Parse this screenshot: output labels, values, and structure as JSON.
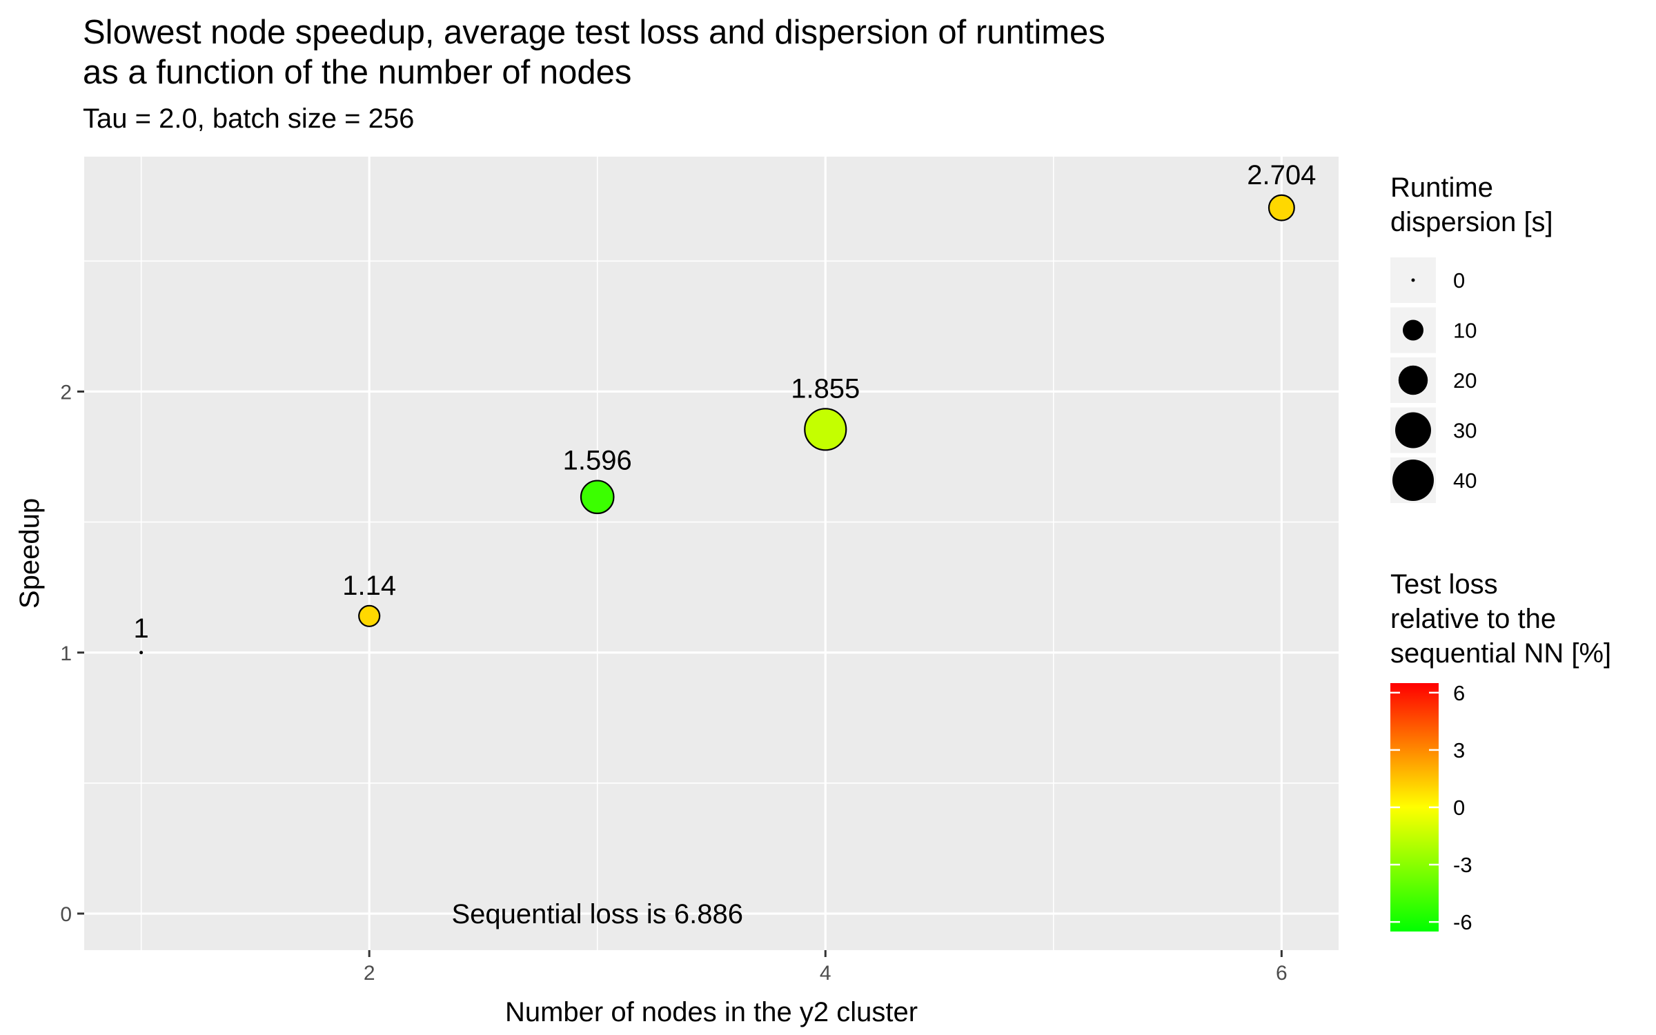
{
  "chart_data": {
    "type": "scatter",
    "title_lines": [
      "Slowest node speedup, average test loss and dispersion of runtimes",
      "as a function of the number of nodes"
    ],
    "subtitle": "Tau = 2.0, batch size = 256",
    "xlabel": "Number of nodes in the y2 cluster",
    "ylabel": "Speedup",
    "xlim": [
      0.75,
      6.25
    ],
    "ylim": [
      -0.14,
      2.9
    ],
    "x_ticks": [
      2,
      4,
      6
    ],
    "y_ticks": [
      0,
      1,
      2
    ],
    "grid": true,
    "points": [
      {
        "x": 1,
        "y": 1.0,
        "label": "1",
        "dispersion": 0,
        "loss_pct": 1.0
      },
      {
        "x": 2,
        "y": 1.14,
        "label": "1.14",
        "dispersion": 10,
        "loss_pct": 1.0
      },
      {
        "x": 3,
        "y": 1.596,
        "label": "1.596",
        "dispersion": 25,
        "loss_pct": -5.0
      },
      {
        "x": 4,
        "y": 1.855,
        "label": "1.855",
        "dispersion": 40,
        "loss_pct": -1.5
      },
      {
        "x": 6,
        "y": 2.704,
        "label": "2.704",
        "dispersion": 15,
        "loss_pct": 1.0
      }
    ],
    "annotation": {
      "text": "Sequential loss is 6.886",
      "x": 3,
      "y": 0
    },
    "size_legend": {
      "title_lines": [
        "Runtime",
        "dispersion [s]"
      ],
      "values": [
        0,
        10,
        20,
        30,
        40
      ],
      "labels": [
        "0",
        "10",
        "20",
        "30",
        "40"
      ]
    },
    "color_legend": {
      "title_lines": [
        "Test loss",
        "relative to the",
        "sequential NN [%]"
      ],
      "range": [
        -6.5,
        6.5
      ],
      "ticks": [
        6,
        3,
        0,
        -3,
        -6
      ],
      "labels": [
        "6",
        "3",
        "0",
        "-3",
        "-6"
      ],
      "low_color": "#00ff00",
      "mid_color": "#ffff00",
      "high_color": "#ff0000"
    },
    "colors": {
      "panel_background": "#ebebeb",
      "grid": "#ffffff",
      "point_outline": "#000000"
    }
  }
}
